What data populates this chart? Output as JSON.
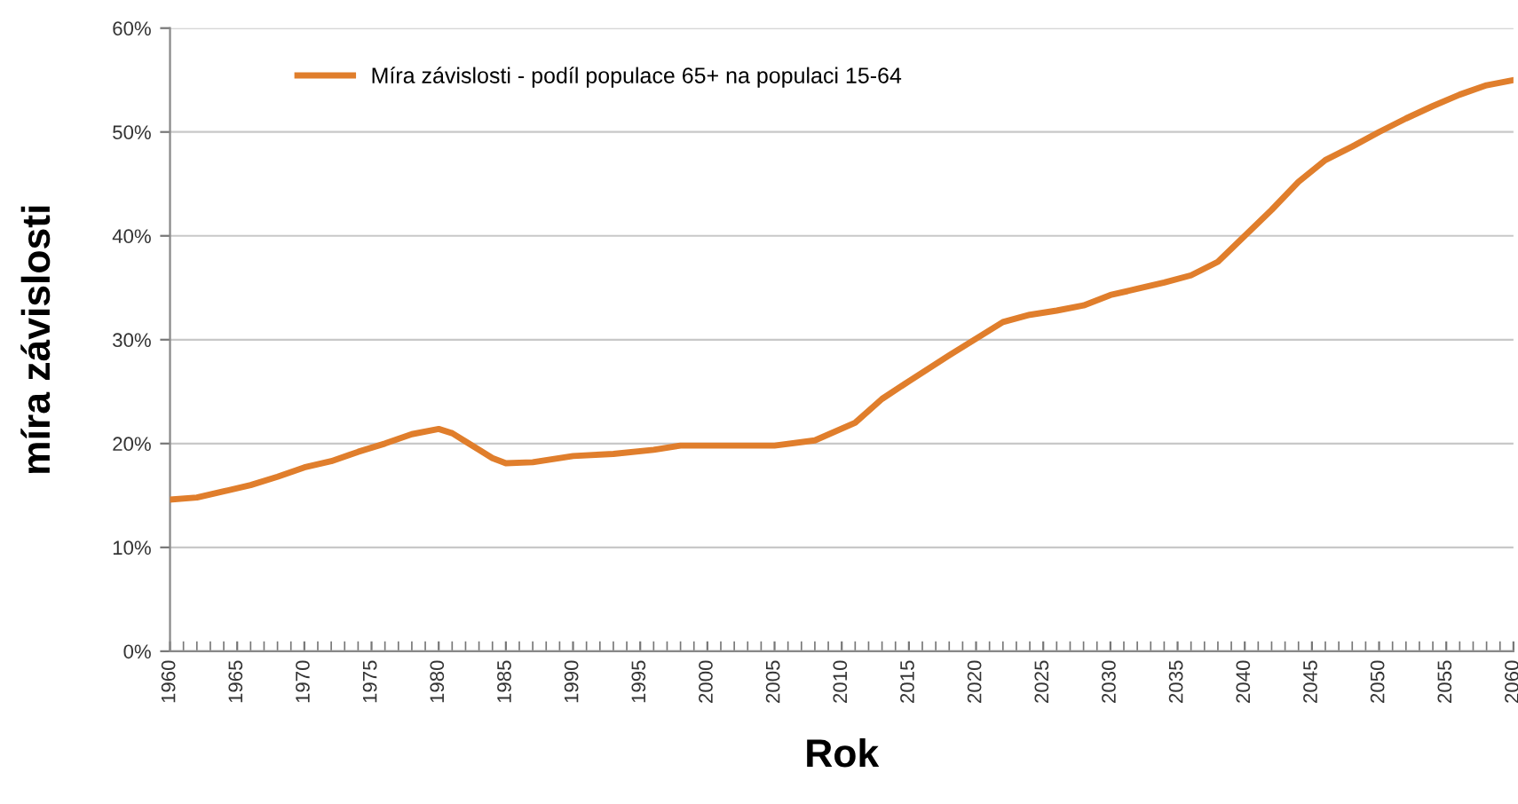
{
  "chart_data": {
    "type": "line",
    "xlabel": "Rok",
    "ylabel": "míra závislosti",
    "xlim": [
      1960,
      2060
    ],
    "ylim": [
      0,
      60
    ],
    "xticks": [
      1960,
      1965,
      1970,
      1975,
      1980,
      1985,
      1990,
      1995,
      2000,
      2005,
      2010,
      2015,
      2020,
      2025,
      2030,
      2035,
      2040,
      2045,
      2050,
      2055,
      2060
    ],
    "yticks": [
      {
        "value": 0,
        "label": "0%"
      },
      {
        "value": 10,
        "label": "10%"
      },
      {
        "value": 20,
        "label": "20%"
      },
      {
        "value": 30,
        "label": "30%"
      },
      {
        "value": 40,
        "label": "40%"
      },
      {
        "value": 50,
        "label": "50%"
      },
      {
        "value": 60,
        "label": "60%"
      }
    ],
    "grid": "y",
    "legend": "top left",
    "marker": "none",
    "line_style": "solid",
    "series": [
      {
        "name": "Míra závislosti - podíl populace 65+ na populaci 15-64",
        "color": "#e07e2c",
        "x": [
          1960,
          1962,
          1964,
          1966,
          1968,
          1970,
          1972,
          1974,
          1976,
          1978,
          1980,
          1981,
          1982,
          1984,
          1985,
          1987,
          1990,
          1993,
          1996,
          1998,
          2000,
          2005,
          2008,
          2011,
          2013,
          2015,
          2018,
          2020,
          2022,
          2024,
          2026,
          2028,
          2030,
          2032,
          2034,
          2036,
          2038,
          2040,
          2042,
          2044,
          2046,
          2048,
          2050,
          2052,
          2054,
          2056,
          2058,
          2060
        ],
        "values": [
          14.6,
          14.8,
          15.4,
          16.0,
          16.8,
          17.7,
          18.3,
          19.2,
          20.0,
          20.9,
          21.4,
          21.0,
          20.2,
          18.6,
          18.1,
          18.2,
          18.8,
          19.0,
          19.4,
          19.8,
          19.8,
          19.8,
          20.3,
          22.0,
          24.3,
          26.0,
          28.5,
          30.1,
          31.7,
          32.4,
          32.8,
          33.3,
          34.3,
          34.9,
          35.5,
          36.2,
          37.5,
          40.0,
          42.5,
          45.2,
          47.3,
          48.6,
          50.0,
          51.3,
          52.5,
          53.6,
          54.5,
          55.0
        ]
      }
    ]
  }
}
